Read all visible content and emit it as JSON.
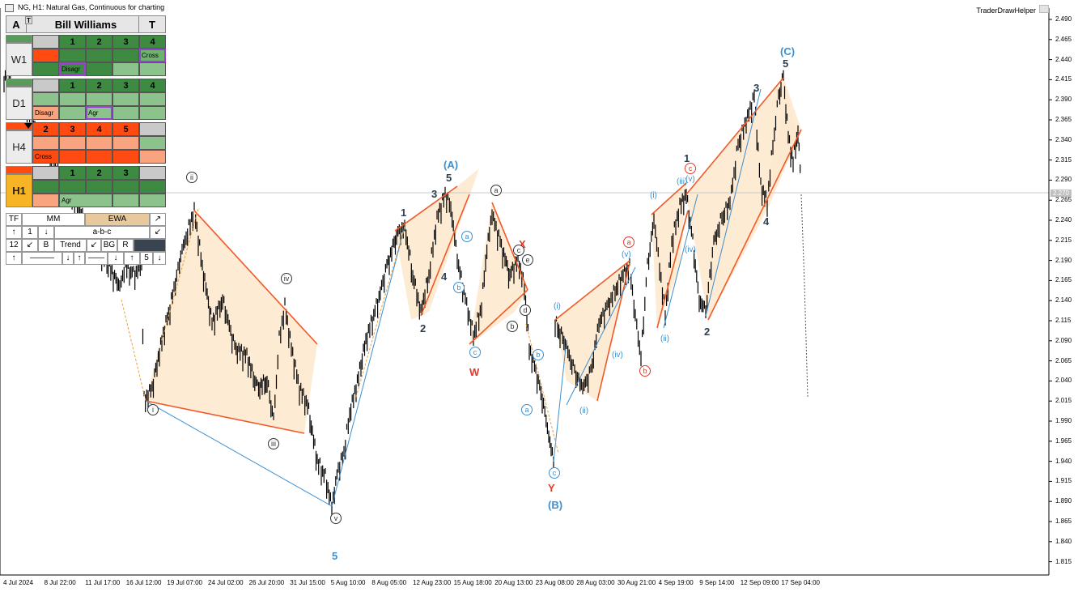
{
  "window": {
    "title": "NG, H1:  Natural Gas, Continuous for charting",
    "plugin": "TraderDrawHelper"
  },
  "price_axis": {
    "labels": [
      "2.490",
      "2.465",
      "2.440",
      "2.415",
      "2.390",
      "2.365",
      "2.340",
      "2.315",
      "2.290",
      "2.265",
      "2.240",
      "2.215",
      "2.190",
      "2.165",
      "2.140",
      "2.115",
      "2.090",
      "2.065",
      "2.040",
      "2.015",
      "1.990",
      "1.965",
      "1.940",
      "1.915",
      "1.890",
      "1.865",
      "1.840",
      "1.815"
    ],
    "current": "2.270"
  },
  "time_axis": {
    "labels": [
      "4 Jul 2024",
      "8 Jul 22:00",
      "11 Jul 17:00",
      "16 Jul 12:00",
      "19 Jul 07:00",
      "24 Jul 02:00",
      "26 Jul 20:00",
      "31 Jul 15:00",
      "5 Aug 10:00",
      "8 Aug 05:00",
      "12 Aug 23:00",
      "15 Aug 18:00",
      "20 Aug 13:00",
      "23 Aug 08:00",
      "28 Aug 03:00",
      "30 Aug 21:00",
      "4 Sep 19:00",
      "9 Sep 14:00",
      "12 Sep 09:00",
      "17 Sep 04:00"
    ]
  },
  "panel": {
    "header_left": "A",
    "header_sub": "T",
    "title": "Bill Williams",
    "header_right": "T",
    "timeframes": [
      {
        "label": "W1",
        "nums": [
          "1",
          "2",
          "3",
          "4"
        ],
        "tag1": "Cross",
        "tag2": "Disagr"
      },
      {
        "label": "D1",
        "nums": [
          "1",
          "2",
          "3",
          "4"
        ],
        "tag1": "Disagr",
        "tag2": "Agr"
      },
      {
        "label": "H4",
        "nums": [
          "2",
          "3",
          "4",
          "5"
        ],
        "tag1": "Cross"
      },
      {
        "label": "H1",
        "nums": [
          "1",
          "2",
          "3"
        ],
        "tag1": "Agr"
      }
    ],
    "controls": {
      "tf": "TF",
      "mm": "MM",
      "ewa": "EWA",
      "one": "1",
      "pattern": "a-b-c",
      "twelve": "12",
      "b": "B",
      "trend": "Trend",
      "bg": "BG",
      "r": "R",
      "five": "5"
    }
  },
  "wave_labels": {
    "A_top": "(A)",
    "five_A": "5",
    "three_A": "3",
    "one_A": "1",
    "four_A": "4",
    "two_A": "2",
    "C_top": "(C)",
    "five_C": "5",
    "three_C": "3",
    "one_C": "1",
    "four_C": "4",
    "two_C": "2",
    "B": "(B)",
    "W": "W",
    "X": "X",
    "Y": "Y",
    "five_bottom": "5"
  },
  "roman_labels": {
    "i": "i",
    "ii": "ii",
    "iii": "iii",
    "iv": "iv",
    "v": "v",
    "i_b": "(i)",
    "ii_b": "(ii)",
    "iii_b": "(iii)",
    "iv_b": "(iv)",
    "v_b": "(v)",
    "i_c": "(i)",
    "ii_c": "(ii)",
    "iii_c": "(iii)",
    "iv_c": "(iv)",
    "v_c": "(v)"
  },
  "letter_labels": {
    "a1": "a",
    "b1": "b",
    "c1": "c",
    "a2": "a",
    "b2": "b",
    "c2": "c",
    "d2": "d",
    "e2": "e",
    "a3": "a",
    "b3": "b",
    "c3": "c",
    "a4": "a",
    "b4": "b",
    "c4": "c"
  },
  "colors": {
    "wedge": "#fde9cf",
    "trendline": "#f05a28",
    "wave_blue": "#3b8fd1",
    "wave_red": "#e03a2a"
  }
}
